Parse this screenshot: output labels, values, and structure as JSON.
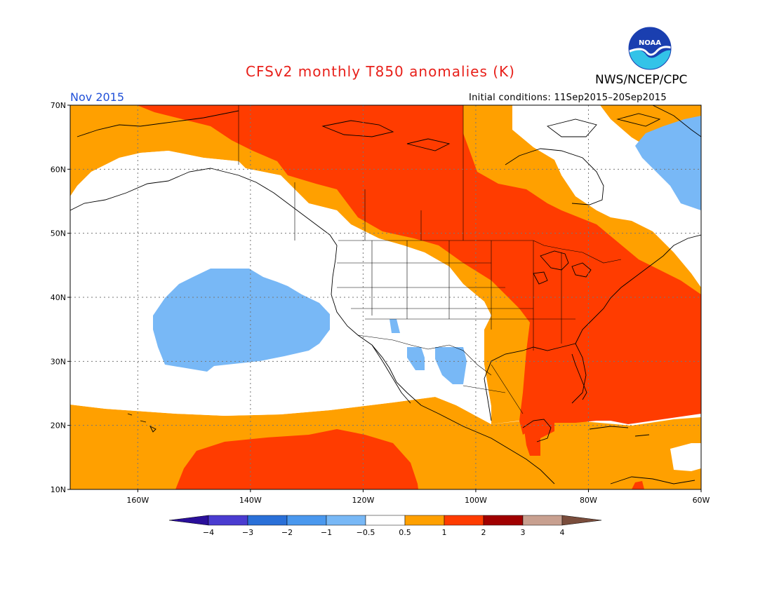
{
  "header": {
    "title": "CFSv2 monthly T850 anomalies (K)",
    "agency": "NWS/NCEP/CPC",
    "month": "Nov 2015",
    "initial_conditions": "Initial conditions: 11Sep2015–20Sep2015",
    "logo_text": "NOAA"
  },
  "map": {
    "lon_range": [
      -172,
      -60
    ],
    "lat_range": [
      10,
      70
    ],
    "lat_ticks": [
      {
        "value": 10,
        "label": "10N"
      },
      {
        "value": 20,
        "label": "20N"
      },
      {
        "value": 30,
        "label": "30N"
      },
      {
        "value": 40,
        "label": "40N"
      },
      {
        "value": 50,
        "label": "50N"
      },
      {
        "value": 60,
        "label": "60N"
      },
      {
        "value": 70,
        "label": "70N"
      }
    ],
    "lon_ticks": [
      {
        "value": -160,
        "label": "160W"
      },
      {
        "value": -140,
        "label": "140W"
      },
      {
        "value": -120,
        "label": "120W"
      },
      {
        "value": -100,
        "label": "100W"
      },
      {
        "value": -80,
        "label": "80W"
      },
      {
        "value": -60,
        "label": "60W"
      }
    ],
    "gridlines": "dotted",
    "colors": {
      "below_minus_4": "#2a0f9a",
      "minus_4_to_minus_3": "#4a3cd0",
      "minus_3_to_minus_2": "#2a70d8",
      "minus_2_to_minus_1": "#4a98ee",
      "minus_1_to_minus_0_5": "#78b8f6",
      "neutral": "#ffffff",
      "0_5_to_1": "#ffa000",
      "1_to_2": "#ff3c00",
      "2_to_3": "#a00000",
      "3_to_4": "#c8a090",
      "above_4": "#7a4d3c"
    }
  },
  "colorbar": {
    "labels": [
      "-4",
      "-3",
      "-2",
      "-1",
      "-0.5",
      "0.5",
      "1",
      "2",
      "3",
      "4"
    ],
    "colors": [
      "#4a3cd0",
      "#2a70d8",
      "#4a98ee",
      "#78b8f6",
      "#ffffff",
      "#ffa000",
      "#ff3c00",
      "#a00000",
      "#c8a090"
    ],
    "low_extend_color": "#2a0f9a",
    "high_extend_color": "#7a4d3c"
  }
}
